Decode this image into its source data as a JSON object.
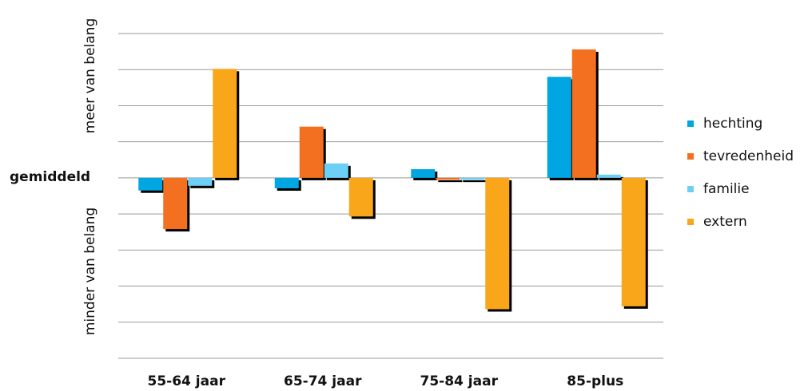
{
  "chart_data": {
    "type": "bar",
    "y_label_top": "meer van belang",
    "y_label_middle": "gemiddeld",
    "y_label_bottom": "minder van belang",
    "categories": [
      "55-64 jaar",
      "65-74 jaar",
      "75-84 jaar",
      "85-plus"
    ],
    "series": [
      {
        "name": "hechting",
        "color": "#00a6e2",
        "values": [
          -0.35,
          -0.29,
          0.24,
          2.8
        ]
      },
      {
        "name": "tevredenheid",
        "color": "#f37021",
        "values": [
          -1.42,
          1.42,
          -0.05,
          3.56
        ]
      },
      {
        "name": "familie",
        "color": "#6dcff6",
        "values": [
          -0.22,
          0.4,
          -0.05,
          0.09
        ]
      },
      {
        "name": "extern",
        "color": "#faa61a",
        "values": [
          3.02,
          -1.07,
          -3.64,
          -3.56
        ]
      }
    ],
    "ylim": [
      -5,
      4
    ],
    "grid_lines": [
      -5,
      -4,
      -3,
      -2,
      -1,
      0,
      1,
      2,
      3,
      4
    ],
    "legend": "right"
  }
}
